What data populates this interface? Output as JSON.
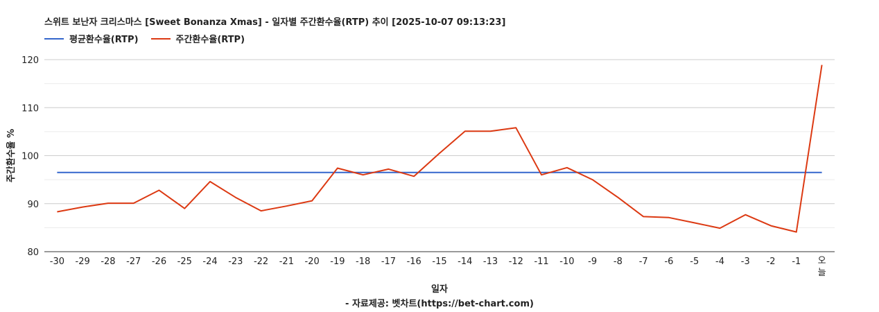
{
  "title": "스위트 보난자 크리스마스 [Sweet Bonanza Xmas] - 일자별 주간환수율(RTP) 추이 [2025-10-07 09:13:23]",
  "legend": [
    {
      "label": "평균환수율(RTP)",
      "color": "#3366cc"
    },
    {
      "label": "주간환수율(RTP)",
      "color": "#dc3912"
    }
  ],
  "chart_data": {
    "type": "line",
    "xlabel": "일자",
    "ylabel": "주간환수율 %",
    "source_note": "- 자료제공: 벳차트(https://bet-chart.com)",
    "ylim": [
      80,
      120
    ],
    "yticks": [
      80,
      90,
      100,
      110,
      120
    ],
    "grid": true,
    "legend_position": "top-left",
    "categories": [
      "-30",
      "-29",
      "-28",
      "-27",
      "-26",
      "-25",
      "-24",
      "-23",
      "-22",
      "-21",
      "-20",
      "-19",
      "-18",
      "-17",
      "-16",
      "-15",
      "-14",
      "-13",
      "-12",
      "-11",
      "-10",
      "-9",
      "-8",
      "-7",
      "-6",
      "-5",
      "-4",
      "-3",
      "-2",
      "-1",
      "오늘"
    ],
    "series": [
      {
        "name": "평균환수율(RTP)",
        "color": "#3366cc",
        "values": [
          96.5,
          96.5,
          96.5,
          96.5,
          96.5,
          96.5,
          96.5,
          96.5,
          96.5,
          96.5,
          96.5,
          96.5,
          96.5,
          96.5,
          96.5,
          96.5,
          96.5,
          96.5,
          96.5,
          96.5,
          96.5,
          96.5,
          96.5,
          96.5,
          96.5,
          96.5,
          96.5,
          96.5,
          96.5,
          96.5,
          96.5
        ]
      },
      {
        "name": "주간환수율(RTP)",
        "color": "#dc3912",
        "values": [
          88.3,
          89.3,
          90.1,
          90.1,
          92.8,
          89.0,
          94.6,
          91.3,
          88.5,
          89.5,
          90.6,
          97.4,
          96.0,
          97.2,
          95.7,
          100.5,
          105.1,
          105.1,
          105.8,
          96.0,
          97.5,
          95.0,
          91.3,
          87.3,
          87.1,
          86.0,
          84.9,
          87.7,
          85.4,
          84.1,
          118.9
        ]
      }
    ]
  }
}
